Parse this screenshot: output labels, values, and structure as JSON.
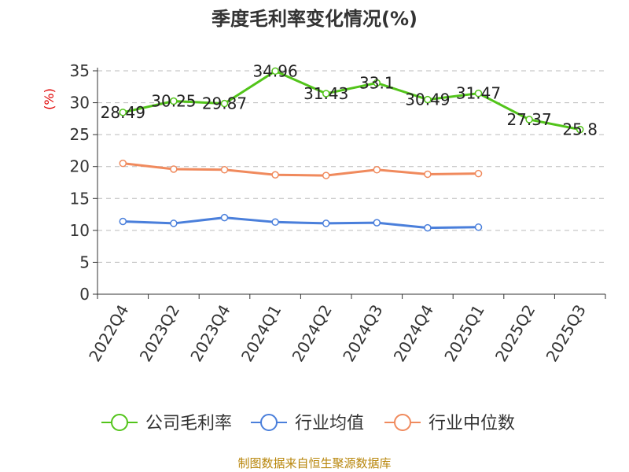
{
  "chart_data": {
    "type": "line",
    "title": "季度毛利率变化情况(%)",
    "ylabel": "(%)",
    "xlabel": "",
    "categories": [
      "2022Q4",
      "2023Q2",
      "2023Q4",
      "2024Q1",
      "2024Q2",
      "2024Q3",
      "2024Q4",
      "2025Q1",
      "2025Q2",
      "2025Q3"
    ],
    "ylim": [
      0,
      35
    ],
    "yticks": [
      0,
      5,
      10,
      15,
      20,
      25,
      30,
      35
    ],
    "grid": true,
    "legend_position": "bottom",
    "series": [
      {
        "name": "公司毛利率",
        "color": "#52c41a",
        "values": [
          28.49,
          30.25,
          29.87,
          34.96,
          31.43,
          33.1,
          30.49,
          31.47,
          27.37,
          25.8
        ],
        "labels": [
          "28.49",
          "30.25",
          "29.87",
          "34.96",
          "31.43",
          "33.1",
          "30.49",
          "31.47",
          "27.37",
          "25.8"
        ],
        "show_labels": true
      },
      {
        "name": "行业均值",
        "color": "#4a7fdb",
        "values": [
          11.4,
          11.1,
          12.0,
          11.3,
          11.1,
          11.2,
          10.4,
          10.5,
          null,
          null
        ],
        "show_labels": false
      },
      {
        "name": "行业中位数",
        "color": "#f08a5d",
        "values": [
          20.5,
          19.6,
          19.5,
          18.7,
          18.6,
          19.5,
          18.8,
          18.9,
          null,
          null
        ],
        "show_labels": false
      }
    ]
  },
  "source_text": "制图数据来自恒生聚源数据库"
}
